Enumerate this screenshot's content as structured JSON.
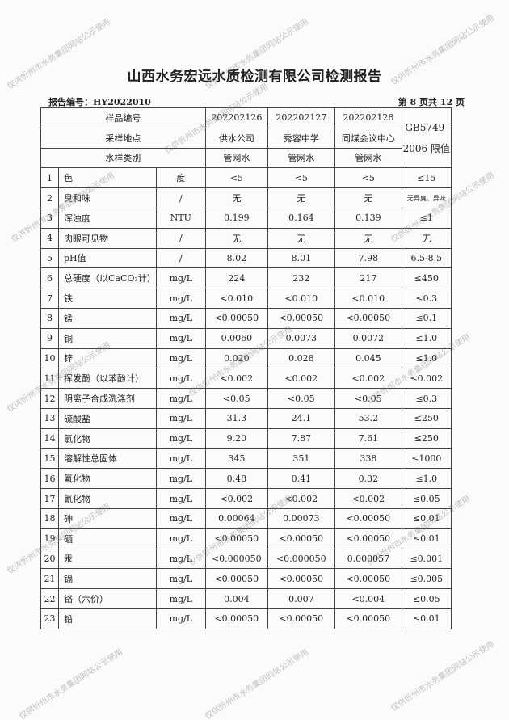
{
  "title": "山西水务宏远水质检测有限公司检测报告",
  "report_no": "报告编号：HY2022010",
  "page_info": "第 8 页共 12 页",
  "header": {
    "sample_no_label": "样品编号",
    "location_label": "采样地点",
    "type_label": "水样类别",
    "standard_label": "GB5749-2006 限值",
    "samples": [
      {
        "no": "202202126",
        "location": "供水公司",
        "type": "管网水"
      },
      {
        "no": "202202127",
        "location": "秀容中学",
        "type": "管网水"
      },
      {
        "no": "202202128",
        "location": "同煤会议中心",
        "type": "管网水"
      }
    ]
  },
  "rows": [
    {
      "n": "1",
      "name": "色",
      "unit": "度",
      "v": [
        "<5",
        "<5",
        "<5"
      ],
      "std": "≤15"
    },
    {
      "n": "2",
      "name": "臭和味",
      "unit": "/",
      "v": [
        "无",
        "无",
        "无"
      ],
      "std": "无异臭、异味"
    },
    {
      "n": "3",
      "name": "浑浊度",
      "unit": "NTU",
      "v": [
        "0.199",
        "0.164",
        "0.139"
      ],
      "std": "≤1"
    },
    {
      "n": "4",
      "name": "肉眼可见物",
      "unit": "/",
      "v": [
        "无",
        "无",
        "无"
      ],
      "std": "无"
    },
    {
      "n": "5",
      "name": "pH值",
      "unit": "/",
      "v": [
        "8.02",
        "8.01",
        "7.98"
      ],
      "std": "6.5-8.5"
    },
    {
      "n": "6",
      "name": "总硬度（以CaCO₃计）",
      "unit": "mg/L",
      "v": [
        "224",
        "232",
        "217"
      ],
      "std": "≤450"
    },
    {
      "n": "7",
      "name": "铁",
      "unit": "mg/L",
      "v": [
        "<0.010",
        "<0.010",
        "<0.010"
      ],
      "std": "≤0.3"
    },
    {
      "n": "8",
      "name": "锰",
      "unit": "mg/L",
      "v": [
        "<0.00050",
        "<0.00050",
        "<0.00050"
      ],
      "std": "≤0.1"
    },
    {
      "n": "9",
      "name": "铜",
      "unit": "mg/L",
      "v": [
        "0.0060",
        "0.0073",
        "0.0072"
      ],
      "std": "≤1.0"
    },
    {
      "n": "10",
      "name": "锌",
      "unit": "mg/L",
      "v": [
        "0.020",
        "0.028",
        "0.045"
      ],
      "std": "≤1.0"
    },
    {
      "n": "11",
      "name": "挥发酚（以苯酚计）",
      "unit": "mg/L",
      "v": [
        "<0.002",
        "<0.002",
        "<0.002"
      ],
      "std": "≤0.002"
    },
    {
      "n": "12",
      "name": "阴离子合成洗涤剂",
      "unit": "mg/L",
      "v": [
        "<0.05",
        "<0.05",
        "<0.05"
      ],
      "std": "≤0.3"
    },
    {
      "n": "13",
      "name": "硫酸盐",
      "unit": "mg/L",
      "v": [
        "31.3",
        "24.1",
        "53.2"
      ],
      "std": "≤250"
    },
    {
      "n": "14",
      "name": "氯化物",
      "unit": "mg/L",
      "v": [
        "9.20",
        "7.87",
        "7.61"
      ],
      "std": "≤250"
    },
    {
      "n": "15",
      "name": "溶解性总固体",
      "unit": "mg/L",
      "v": [
        "345",
        "351",
        "338"
      ],
      "std": "≤1000"
    },
    {
      "n": "16",
      "name": "氟化物",
      "unit": "mg/L",
      "v": [
        "0.48",
        "0.41",
        "0.32"
      ],
      "std": "≤1.0"
    },
    {
      "n": "17",
      "name": "氰化物",
      "unit": "mg/L",
      "v": [
        "<0.002",
        "<0.002",
        "<0.002"
      ],
      "std": "≤0.05"
    },
    {
      "n": "18",
      "name": "砷",
      "unit": "mg/L",
      "v": [
        "0.00064",
        "0.00073",
        "<0.00050"
      ],
      "std": "≤0.01"
    },
    {
      "n": "19",
      "name": "硒",
      "unit": "mg/L",
      "v": [
        "<0.00050",
        "<0.00050",
        "<0.00050"
      ],
      "std": "≤0.01"
    },
    {
      "n": "20",
      "name": "汞",
      "unit": "mg/L",
      "v": [
        "<0.000050",
        "<0.000050",
        "0.000057"
      ],
      "std": "≤0.001"
    },
    {
      "n": "21",
      "name": "镉",
      "unit": "mg/L",
      "v": [
        "<0.00050",
        "<0.00050",
        "<0.00050"
      ],
      "std": "≤0.005"
    },
    {
      "n": "22",
      "name": "铬（六价）",
      "unit": "mg/L",
      "v": [
        "0.004",
        "0.007",
        "<0.004"
      ],
      "std": "≤0.05"
    },
    {
      "n": "23",
      "name": "铅",
      "unit": "mg/L",
      "v": [
        "<0.00050",
        "<0.00050",
        "<0.00050"
      ],
      "std": "≤0.01"
    }
  ],
  "watermark": "仅供忻州市水务集团网站公示使用"
}
